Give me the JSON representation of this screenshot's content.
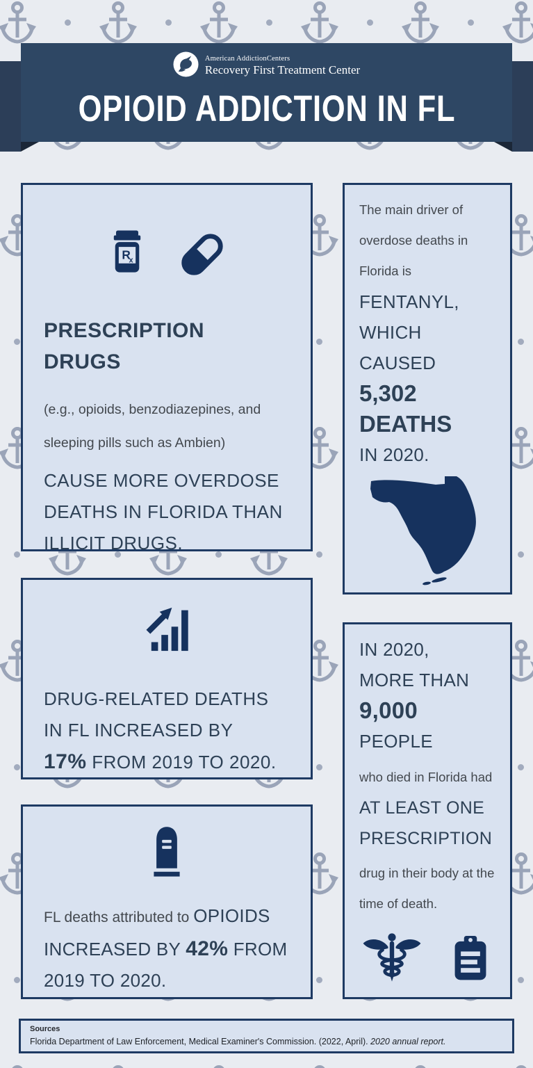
{
  "colors": {
    "page_bg": "#e9ecf1",
    "pattern": "#9aa4b8",
    "banner": "#2e4764",
    "banner_tab": "#2c3e58",
    "banner_fold": "#1b2737",
    "card_bg": "#d9e2f0",
    "card_border": "#1e3a63",
    "icon_navy": "#16325e",
    "text_navy": "#2e4156",
    "text_gray": "#43484e",
    "white": "#ffffff"
  },
  "header": {
    "logo_icon": "dove-icon",
    "brand_line1": "American AddictionCenters",
    "brand_line2": "Recovery First Treatment Center",
    "title": "OPIOID ADDICTION IN FL"
  },
  "cards": {
    "prescription": {
      "icon_names": [
        "rx-bottle-icon",
        "capsule-icon"
      ],
      "rx_symbol": "R",
      "rx_symbol_sub": "x",
      "heading_line1": "PRESCRIPTION",
      "heading_line2": "DRUGS",
      "subtext_line1": "(e.g., opioids, benzodiazepines, and",
      "subtext_line2": "sleeping pills such as Ambien)",
      "statement": "CAUSE MORE OVERDOSE DEATHS IN FLORIDA THAN ILLICIT DRUGS."
    },
    "fentanyl": {
      "intro_lines": [
        "The main driver of",
        "overdose deaths in",
        "Florida is"
      ],
      "emphasis_lines": [
        "FENTANYL,",
        "WHICH",
        "CAUSED"
      ],
      "stat": "5,302",
      "stat_label": "DEATHS",
      "outro": "IN 2020.",
      "icon_name": "florida-map"
    },
    "increase": {
      "icon_name": "bar-chart-up-icon",
      "text_before": "DRUG-RELATED DEATHS IN FL INCREASED BY",
      "stat": "17%",
      "text_after": " FROM 2019 TO 2020."
    },
    "opioids": {
      "icon_name": "tombstone-icon",
      "text_gray": "FL deaths attributed to ",
      "caps_before": "OPIOIDS INCREASED BY ",
      "stat": "42%",
      "caps_after": " FROM 2019 TO 2020."
    },
    "nine_thousand": {
      "caps_line1": "IN 2020,",
      "caps_line2": "MORE THAN",
      "stat": "9,000",
      "caps_line3": "PEOPLE",
      "gray_1": "who died in Florida had",
      "emphasis_line1": "AT LEAST ONE",
      "emphasis_line2": "PRESCRIPTION",
      "gray_2_line1": "drug in their body at the",
      "gray_2_line2": "time of death.",
      "icon_names": [
        "caduceus-icon",
        "clipboard-icon"
      ]
    }
  },
  "sources": {
    "label": "Sources",
    "citation_regular": "Florida Department of Law Enforcement, Medical Examiner's Commission. (2022, April). ",
    "citation_italic": "2020 annual report."
  }
}
